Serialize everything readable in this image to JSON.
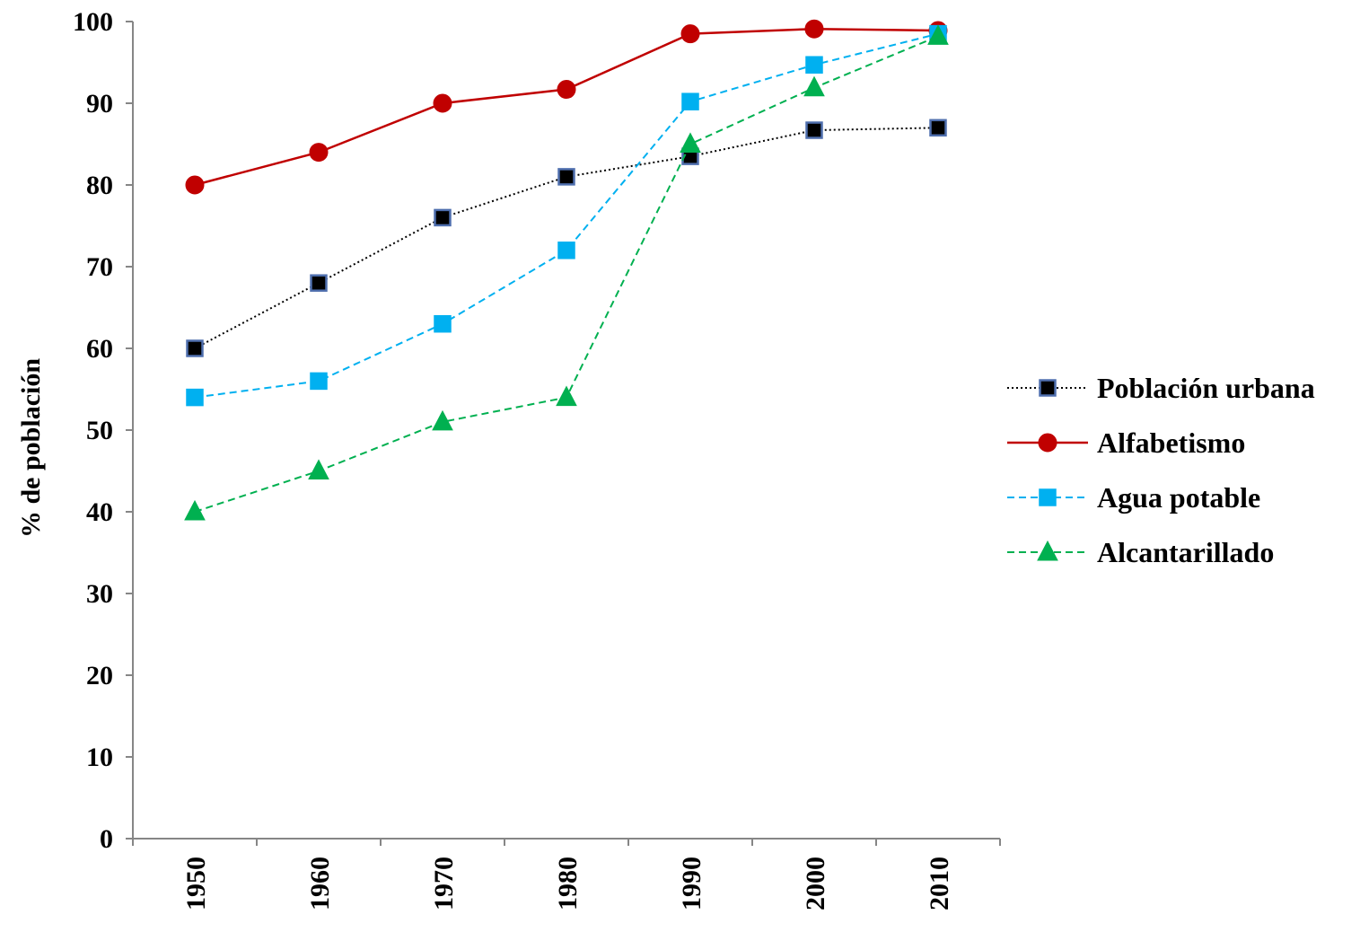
{
  "chart_data": {
    "type": "line",
    "title": "",
    "xlabel": "",
    "ylabel": "% de población",
    "ylim": [
      0,
      100
    ],
    "yticks": [
      0,
      10,
      20,
      30,
      40,
      50,
      60,
      70,
      80,
      90,
      100
    ],
    "categories": [
      "1950",
      "1960",
      "1970",
      "1980",
      "1990",
      "2000",
      "2010"
    ],
    "grid": false,
    "legend_position": "right",
    "series": [
      {
        "name": "Población urbana",
        "values": [
          60,
          68,
          76,
          81,
          83.5,
          86.7,
          87
        ],
        "color": "#000000",
        "line_style": "dotted",
        "marker": "square",
        "marker_fill": "#000000",
        "marker_edge": "#4f6fae"
      },
      {
        "name": "Alfabetismo",
        "values": [
          80,
          84,
          90,
          91.7,
          98.5,
          99.1,
          98.9
        ],
        "color": "#c00000",
        "line_style": "solid",
        "marker": "circle",
        "marker_fill": "#c00000",
        "marker_edge": "#c00000"
      },
      {
        "name": "Agua potable",
        "values": [
          54,
          56,
          63,
          72,
          90.2,
          94.7,
          98.5
        ],
        "color": "#00b0f0",
        "line_style": "dashed",
        "marker": "square",
        "marker_fill": "#00b0f0",
        "marker_edge": "#00b0f0"
      },
      {
        "name": "Alcantarillado",
        "values": [
          40,
          45,
          51,
          54,
          85,
          91.9,
          98.2
        ],
        "color": "#00b050",
        "line_style": "dashed",
        "marker": "triangle",
        "marker_fill": "#00b050",
        "marker_edge": "#00b050"
      }
    ]
  }
}
